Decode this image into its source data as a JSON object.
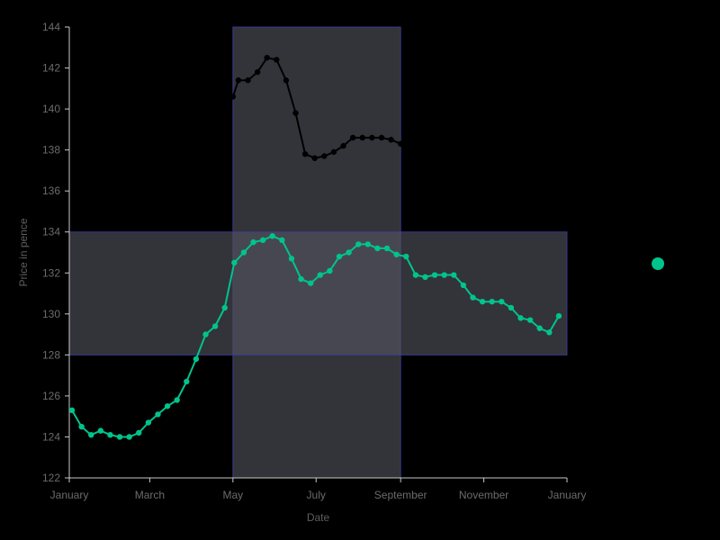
{
  "chart_data": {
    "type": "line",
    "xlabel": "Date",
    "ylabel": "Price in pence",
    "ylim": [
      122,
      144
    ],
    "y_ticks": [
      122,
      124,
      126,
      128,
      130,
      132,
      134,
      136,
      138,
      140,
      142,
      144
    ],
    "xlim": [
      "2023-01-01",
      "2024-01-01"
    ],
    "x_ticks": [
      {
        "date": "2023-01-01",
        "label": "January"
      },
      {
        "date": "2023-03-01",
        "label": "March"
      },
      {
        "date": "2023-05-01",
        "label": "May"
      },
      {
        "date": "2023-07-01",
        "label": "July"
      },
      {
        "date": "2023-09-01",
        "label": "September"
      },
      {
        "date": "2023-11-01",
        "label": "November"
      },
      {
        "date": "2024-01-01",
        "label": "January"
      }
    ],
    "grid": false,
    "bands": [
      {
        "axis": "x",
        "from": "2023-05-01",
        "to": "2023-09-01",
        "color": "#555560"
      },
      {
        "axis": "y",
        "from": 128,
        "to": 134,
        "color": "#555560"
      }
    ],
    "series": [
      {
        "color": "#00c48c",
        "points": [
          [
            "2023-01-03",
            125.3
          ],
          [
            "2023-01-10",
            124.5
          ],
          [
            "2023-01-17",
            124.1
          ],
          [
            "2023-01-24",
            124.3
          ],
          [
            "2023-01-31",
            124.1
          ],
          [
            "2023-02-07",
            124.0
          ],
          [
            "2023-02-14",
            124.0
          ],
          [
            "2023-02-21",
            124.2
          ],
          [
            "2023-02-28",
            124.7
          ],
          [
            "2023-03-07",
            125.1
          ],
          [
            "2023-03-14",
            125.5
          ],
          [
            "2023-03-21",
            125.8
          ],
          [
            "2023-03-28",
            126.7
          ],
          [
            "2023-04-04",
            127.8
          ],
          [
            "2023-04-11",
            129.0
          ],
          [
            "2023-04-18",
            129.4
          ],
          [
            "2023-04-25",
            130.3
          ],
          [
            "2023-05-02",
            132.5
          ],
          [
            "2023-05-09",
            133.0
          ],
          [
            "2023-05-16",
            133.5
          ],
          [
            "2023-05-23",
            133.6
          ],
          [
            "2023-05-30",
            133.8
          ],
          [
            "2023-06-06",
            133.6
          ],
          [
            "2023-06-13",
            132.7
          ],
          [
            "2023-06-20",
            131.7
          ],
          [
            "2023-06-27",
            131.5
          ],
          [
            "2023-07-04",
            131.9
          ],
          [
            "2023-07-11",
            132.1
          ],
          [
            "2023-07-18",
            132.8
          ],
          [
            "2023-07-25",
            133.0
          ],
          [
            "2023-08-01",
            133.4
          ],
          [
            "2023-08-08",
            133.4
          ],
          [
            "2023-08-15",
            133.2
          ],
          [
            "2023-08-22",
            133.2
          ],
          [
            "2023-08-29",
            132.9
          ],
          [
            "2023-09-05",
            132.8
          ],
          [
            "2023-09-12",
            131.9
          ],
          [
            "2023-09-19",
            131.8
          ],
          [
            "2023-09-26",
            131.9
          ],
          [
            "2023-10-03",
            131.9
          ],
          [
            "2023-10-10",
            131.9
          ],
          [
            "2023-10-17",
            131.4
          ],
          [
            "2023-10-24",
            130.8
          ],
          [
            "2023-10-31",
            130.6
          ],
          [
            "2023-11-07",
            130.6
          ],
          [
            "2023-11-14",
            130.6
          ],
          [
            "2023-11-21",
            130.3
          ],
          [
            "2023-11-28",
            129.8
          ],
          [
            "2023-12-05",
            129.7
          ],
          [
            "2023-12-12",
            129.3
          ],
          [
            "2023-12-19",
            129.1
          ],
          [
            "2023-12-26",
            129.9
          ]
        ]
      },
      {
        "color": "#000000",
        "points": [
          [
            "2023-05-01",
            140.6
          ],
          [
            "2023-05-05",
            141.4
          ],
          [
            "2023-05-12",
            141.4
          ],
          [
            "2023-05-19",
            141.8
          ],
          [
            "2023-05-26",
            142.5
          ],
          [
            "2023-06-02",
            142.4
          ],
          [
            "2023-06-09",
            141.4
          ],
          [
            "2023-06-16",
            139.8
          ],
          [
            "2023-06-23",
            137.8
          ],
          [
            "2023-06-30",
            137.6
          ],
          [
            "2023-07-07",
            137.7
          ],
          [
            "2023-07-14",
            137.9
          ],
          [
            "2023-07-21",
            138.2
          ],
          [
            "2023-07-28",
            138.6
          ],
          [
            "2023-08-04",
            138.6
          ],
          [
            "2023-08-11",
            138.6
          ],
          [
            "2023-08-18",
            138.6
          ],
          [
            "2023-08-25",
            138.5
          ],
          [
            "2023-09-01",
            138.3
          ]
        ]
      }
    ],
    "outlier_marker": {
      "color": "#00c48c"
    }
  }
}
